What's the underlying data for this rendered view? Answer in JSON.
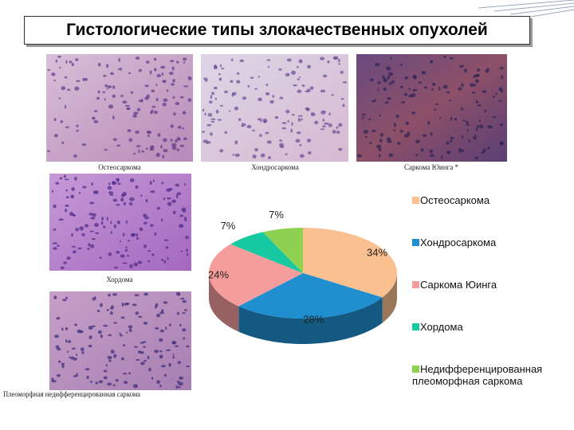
{
  "title": "Гистологические типы злокачественных опухолей",
  "images": [
    {
      "caption": "Остеосаркома"
    },
    {
      "caption": "Хондросаркома"
    },
    {
      "caption": "Саркома Юинга *"
    },
    {
      "caption": "Хордома"
    },
    {
      "caption": "Плеоморфная недифференцированная саркома"
    }
  ],
  "chart_data": {
    "type": "pie",
    "categories": [
      "Остеосаркома",
      "Хондросаркома",
      "Саркома Юинга",
      "Хордома",
      "Недифференцированная плеоморфная саркома"
    ],
    "values": [
      34,
      28,
      24,
      7,
      7
    ],
    "value_labels": [
      "34%",
      "28%",
      "24%",
      "7%",
      "7%"
    ],
    "colors": [
      "#fac090",
      "#1f8fd0",
      "#f59d9d",
      "#17c9a0",
      "#8ed150"
    ]
  }
}
